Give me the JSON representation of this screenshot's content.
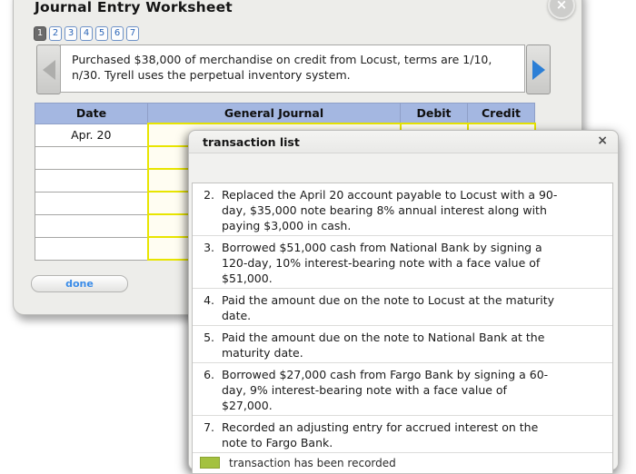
{
  "worksheet": {
    "title": "Journal Entry Worksheet",
    "close_label": "×",
    "pages": [
      "1",
      "2",
      "3",
      "4",
      "5",
      "6",
      "7"
    ],
    "active_page": "1",
    "description": "Purchased $38,000 of merchandise on credit from Locust, terms are 1/10, n/30. Tyrell uses the perpetual inventory system.",
    "table": {
      "headers": [
        "Date",
        "General Journal",
        "Debit",
        "Credit"
      ],
      "rows": [
        "Apr. 20",
        "",
        "",
        "",
        "",
        ""
      ]
    },
    "done_label": "done"
  },
  "dialog": {
    "title": "transaction list",
    "close_label": "×",
    "items": [
      {
        "num": "2.",
        "text": "Replaced the April 20 account payable to Locust with a 90-day, $35,000 note bearing 8% annual interest along with paying $3,000 in cash."
      },
      {
        "num": "3.",
        "text": "Borrowed $51,000 cash from National Bank by signing a 120-day, 10% interest-bearing note with a face value of $51,000."
      },
      {
        "num": "4.",
        "text": "Paid the amount due on the note to Locust at the maturity date."
      },
      {
        "num": "5.",
        "text": "Paid the amount due on the note to National Bank at the maturity date."
      },
      {
        "num": "6.",
        "text": "Borrowed $27,000 cash from Fargo Bank by signing a 60-day, 9% interest-bearing note with a face value of $27,000."
      },
      {
        "num": "7.",
        "text": "Recorded an adjusting entry for accrued interest on the note to Fargo Bank."
      }
    ],
    "legend_text": "transaction has been recorded"
  },
  "colors": {
    "table_header_blue": "#a4b7e1",
    "highlight_cell_yellow": "#e8e500",
    "accent_link_blue": "#2c7fd6",
    "legend_green": "#a4c13f",
    "panel_gray": "#ededea"
  }
}
